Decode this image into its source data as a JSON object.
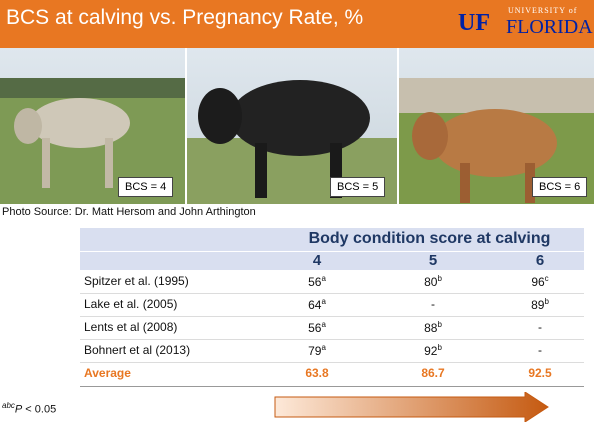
{
  "header": {
    "title": "BCS at calving vs. Pregnancy Rate, %",
    "logo_mark": "UF",
    "logo_top": "UNIVERSITY of",
    "logo_name": "FLORIDA"
  },
  "photos": [
    {
      "label": "BCS = 4"
    },
    {
      "label": "BCS = 5"
    },
    {
      "label": "BCS = 6"
    }
  ],
  "photo_source": "Photo Source: Dr. Matt Hersom and John Arthington",
  "table": {
    "group_header": "Body condition score at calving",
    "columns": [
      "4",
      "5",
      "6"
    ],
    "rows": [
      {
        "label": "Spitzer et al. (1995)",
        "cells": [
          [
            "56",
            "a"
          ],
          [
            "80",
            "b"
          ],
          [
            "96",
            "c"
          ]
        ]
      },
      {
        "label": "Lake et al. (2005)",
        "cells": [
          [
            "64",
            "a"
          ],
          [
            "-"
          ],
          [
            "89",
            "b"
          ]
        ]
      },
      {
        "label": "Lents et al (2008)",
        "cells": [
          [
            "56",
            "a"
          ],
          [
            "88",
            "b"
          ],
          [
            "-"
          ]
        ]
      },
      {
        "label": "Bohnert et al (2013)",
        "cells": [
          [
            "79",
            "a"
          ],
          [
            "92",
            "b"
          ],
          [
            "-"
          ]
        ]
      }
    ],
    "average": {
      "label": "Average",
      "cells": [
        "63.8",
        "86.7",
        "92.5"
      ]
    }
  },
  "footnote": {
    "sup": "abc",
    "italic": "P",
    "text": " < 0.05"
  }
}
